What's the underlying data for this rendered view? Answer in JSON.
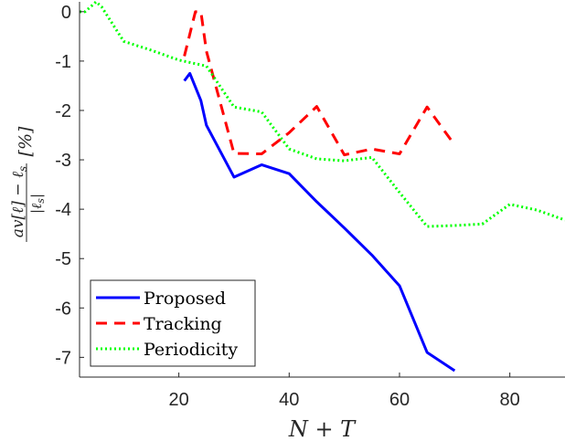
{
  "chart_data": {
    "type": "line",
    "xlabel": "N + T",
    "ylabel": {
      "numerator": "av[ℓ] − ℓ",
      "numerator_sub": "s",
      "denominator": "|ℓ",
      "denominator_sub": "s",
      "denominator_close": "|",
      "unit": "[%]"
    },
    "xlim": [
      2,
      90
    ],
    "ylim": [
      -7.4,
      0.2
    ],
    "xticks": [
      20,
      40,
      60,
      80
    ],
    "yticks": [
      0,
      -1,
      -2,
      -3,
      -4,
      -5,
      -6,
      -7
    ],
    "grid": false,
    "legend_position": "bottom-left",
    "series": [
      {
        "name": "Proposed",
        "color": "#0000ff",
        "style": "solid",
        "x": [
          21,
          22,
          24,
          25,
          30,
          35,
          40,
          45,
          50,
          55,
          60,
          65,
          70
        ],
        "y": [
          -1.4,
          -1.25,
          -1.8,
          -2.3,
          -3.35,
          -3.1,
          -3.28,
          -3.85,
          -4.38,
          -4.93,
          -5.55,
          -6.9,
          -7.27
        ]
      },
      {
        "name": "Tracking",
        "color": "#ff0000",
        "style": "dashed",
        "x": [
          21,
          23,
          24,
          25,
          30,
          35,
          40,
          45,
          50,
          55,
          60,
          65,
          70
        ],
        "y": [
          -0.9,
          0.0,
          0.0,
          -0.8,
          -2.87,
          -2.88,
          -2.45,
          -1.92,
          -2.9,
          -2.78,
          -2.88,
          -1.93,
          -2.7
        ]
      },
      {
        "name": "Periodicity",
        "color": "#00ff00",
        "style": "dotted",
        "x": [
          2,
          3,
          5,
          6,
          10,
          15,
          20,
          25,
          30,
          35,
          40,
          45,
          50,
          55,
          60,
          65,
          70,
          75,
          80,
          85,
          90
        ],
        "y": [
          0.0,
          0.0,
          0.2,
          0.1,
          -0.6,
          -0.78,
          -0.98,
          -1.1,
          -1.93,
          -2.03,
          -2.78,
          -2.98,
          -3.02,
          -2.95,
          -3.66,
          -4.35,
          -4.33,
          -4.3,
          -3.9,
          -4.02,
          -4.22
        ]
      }
    ]
  }
}
